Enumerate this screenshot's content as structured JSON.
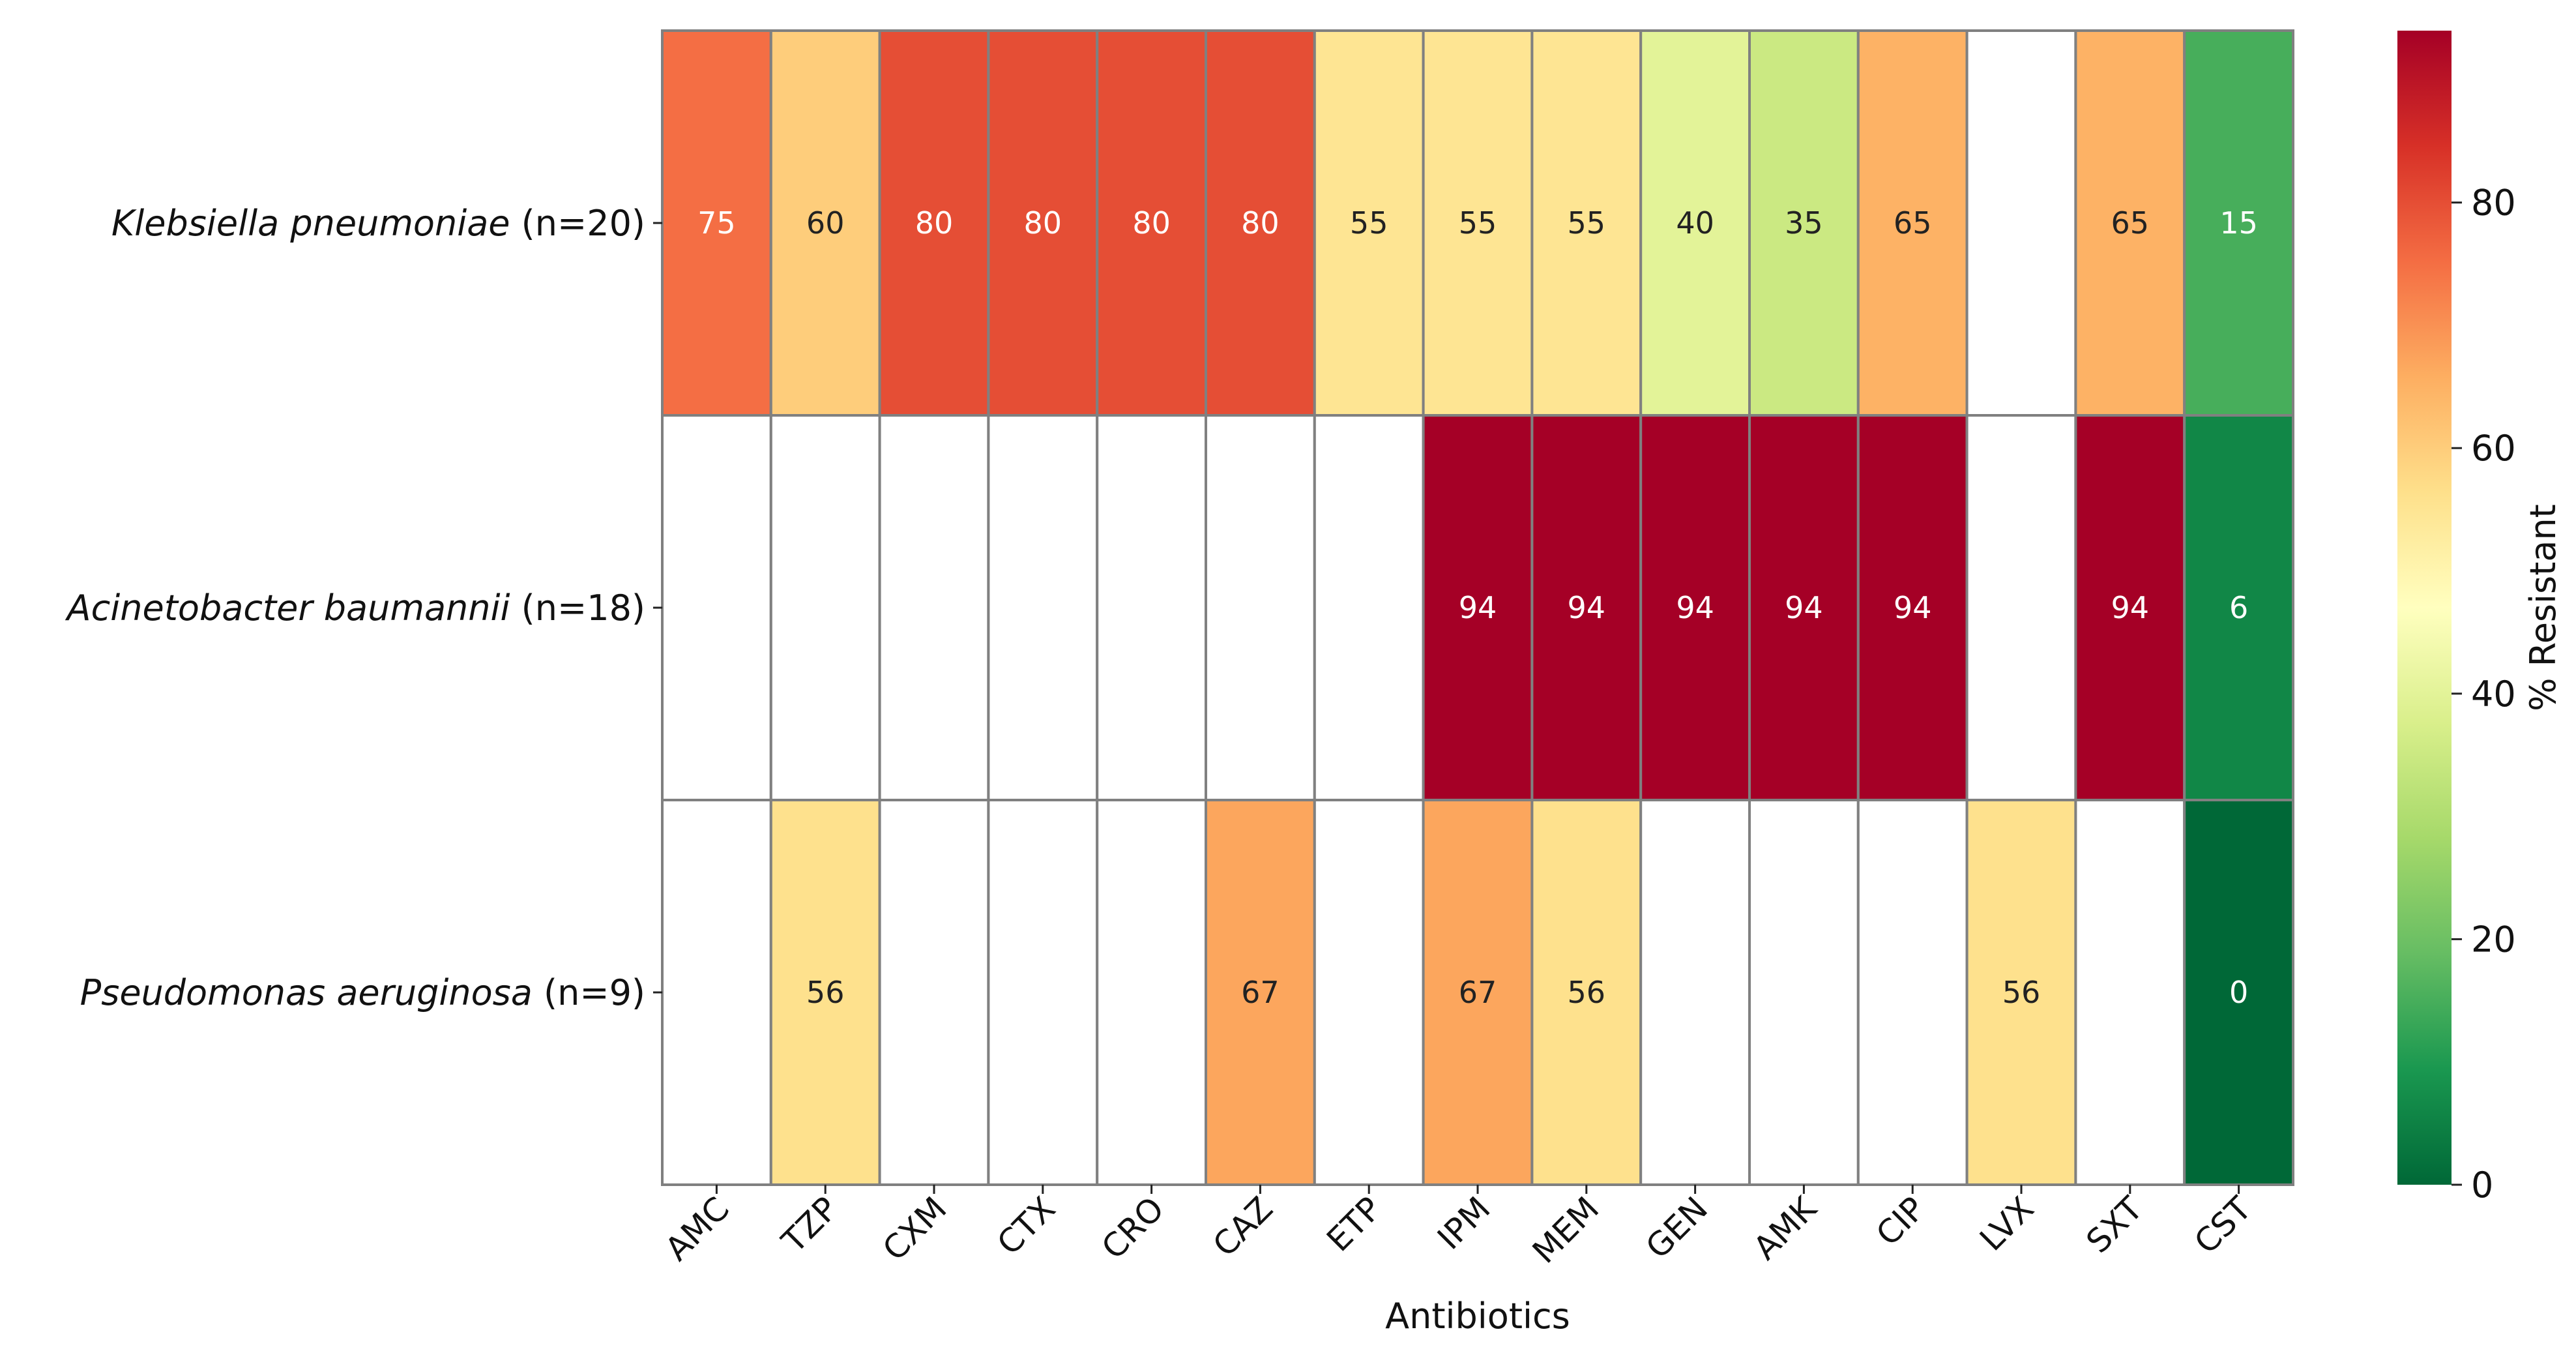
{
  "chart_data": {
    "type": "heatmap",
    "title": "",
    "xlabel": "Antibiotics",
    "ylabel": "",
    "x_categories": [
      "AMC",
      "TZP",
      "CXM",
      "CTX",
      "CRO",
      "CAZ",
      "ETP",
      "IPM",
      "MEM",
      "GEN",
      "AMK",
      "CIP",
      "LVX",
      "SXT",
      "CST"
    ],
    "rows": [
      {
        "organism": "Klebsiella pneumoniae",
        "n_label": "(n=20)",
        "values": [
          75,
          60,
          80,
          80,
          80,
          80,
          55,
          55,
          55,
          40,
          35,
          65,
          null,
          65,
          15
        ]
      },
      {
        "organism": "Acinetobacter baumannii",
        "n_label": "(n=18)",
        "values": [
          null,
          null,
          null,
          null,
          null,
          null,
          null,
          94,
          94,
          94,
          94,
          94,
          null,
          94,
          6
        ]
      },
      {
        "organism": "Pseudomonas aeruginosa",
        "n_label": "(n=9)",
        "values": [
          null,
          56,
          null,
          null,
          null,
          67,
          null,
          67,
          56,
          null,
          null,
          null,
          56,
          null,
          0
        ]
      }
    ],
    "colorbar": {
      "label": "% Resistant",
      "range": [
        0,
        94
      ],
      "ticks": [
        0,
        20,
        40,
        60,
        80
      ],
      "colormap": "RdYlGn_r"
    },
    "empty_cell_color": "#ffffff",
    "grid_line_color": "#808080"
  }
}
